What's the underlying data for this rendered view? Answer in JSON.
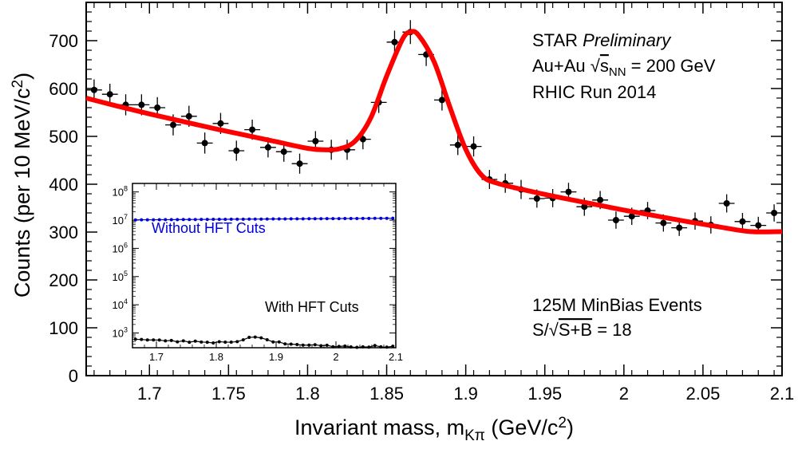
{
  "chart_data": [
    {
      "type": "scatter",
      "title": "",
      "xlabel": "Invariant mass, m",
      "xlabel_sub": "Kπ",
      "xlabel_unit": " (GeV/c",
      "xlabel_unit_sup": "2",
      "xlabel_unit_close": ")",
      "ylabel": "Counts (per 10 MeV/c",
      "ylabel_sup": "2",
      "ylabel_close": ")",
      "xlim": [
        1.66,
        2.1
      ],
      "ylim": [
        0,
        780
      ],
      "x_ticks": [
        1.7,
        1.75,
        1.8,
        1.85,
        1.9,
        1.95,
        2.0,
        2.05,
        2.1
      ],
      "x_tick_labels": [
        "1.7",
        "1.75",
        "1.8",
        "1.85",
        "1.9",
        "1.95",
        "2",
        "2.05",
        "2.1"
      ],
      "y_ticks": [
        0,
        100,
        200,
        300,
        400,
        500,
        600,
        700
      ],
      "y_tick_labels": [
        "0",
        "100",
        "200",
        "300",
        "400",
        "500",
        "600",
        "700"
      ],
      "grid": false,
      "x_error": 0.005,
      "series": [
        {
          "name": "",
          "color": "#000000",
          "x": [
            1.665,
            1.675,
            1.685,
            1.695,
            1.705,
            1.715,
            1.725,
            1.735,
            1.745,
            1.755,
            1.765,
            1.775,
            1.785,
            1.795,
            1.805,
            1.815,
            1.825,
            1.835,
            1.845,
            1.855,
            1.865,
            1.875,
            1.885,
            1.895,
            1.905,
            1.915,
            1.925,
            1.935,
            1.945,
            1.955,
            1.965,
            1.975,
            1.985,
            1.995,
            2.005,
            2.015,
            2.025,
            2.035,
            2.045,
            2.055,
            2.065,
            2.075,
            2.085,
            2.095
          ],
          "y": [
            597,
            588,
            566,
            566,
            560,
            524,
            542,
            486,
            527,
            470,
            514,
            477,
            468,
            443,
            490,
            472,
            472,
            494,
            571,
            697,
            718,
            671,
            576,
            482,
            479,
            410,
            402,
            389,
            370,
            371,
            384,
            353,
            367,
            325,
            333,
            345,
            319,
            309,
            323,
            315,
            360,
            322,
            314,
            340
          ],
          "y_error": [
            22,
            22,
            22,
            22,
            22,
            22,
            22,
            22,
            22,
            21,
            21,
            21,
            21,
            21,
            21,
            21,
            21,
            21,
            22,
            24,
            25,
            24,
            22,
            21,
            21,
            20,
            20,
            20,
            19,
            19,
            19,
            19,
            19,
            18,
            18,
            18,
            18,
            17,
            18,
            18,
            19,
            18,
            18,
            18
          ]
        },
        {
          "name": "",
          "type": "line",
          "color": "#ff0000",
          "x": [
            1.66,
            1.68,
            1.7,
            1.72,
            1.74,
            1.76,
            1.78,
            1.8,
            1.81,
            1.82,
            1.83,
            1.84,
            1.85,
            1.86,
            1.865,
            1.87,
            1.88,
            1.89,
            1.9,
            1.91,
            1.92,
            1.94,
            1.96,
            1.98,
            2.0,
            2.02,
            2.04,
            2.06,
            2.08,
            2.1
          ],
          "y": [
            580,
            563,
            547,
            532,
            517,
            503,
            489,
            475,
            472,
            474,
            490,
            539,
            626,
            703,
            718,
            712,
            656,
            561,
            473,
            419,
            402,
            386,
            372,
            359,
            346,
            334,
            322,
            311,
            301,
            301
          ]
        }
      ],
      "annotations": {
        "experiment": "STAR",
        "status": "Preliminary",
        "system_prefix": "Au+Au ",
        "sqrt": "√",
        "s": "s",
        "s_sub": "NN",
        "energy": " = 200 GeV",
        "run": "RHIC Run 2014",
        "events": "125M MinBias Events",
        "significance_prefix": "S/",
        "significance_sqrt": "√",
        "significance_sb": "S+B",
        "significance_value": " = 18"
      }
    },
    {
      "type": "scatter",
      "title": "",
      "y_scale": "log",
      "xlim": [
        1.66,
        2.1
      ],
      "ylim": [
        300,
        200000000
      ],
      "x_ticks": [
        1.7,
        1.8,
        1.9,
        2.0,
        2.1
      ],
      "x_tick_labels": [
        "1.7",
        "1.8",
        "1.9",
        "2",
        "2.1"
      ],
      "y_ticks": [
        1000,
        10000,
        100000,
        1000000,
        10000000,
        100000000
      ],
      "y_tick_base": "10",
      "y_tick_exponents": [
        "3",
        "4",
        "5",
        "6",
        "7",
        "8"
      ],
      "series": [
        {
          "name": "Without HFT Cuts",
          "color": "#0000dd",
          "x": [
            1.665,
            1.675,
            1.685,
            1.695,
            1.705,
            1.715,
            1.725,
            1.735,
            1.745,
            1.755,
            1.765,
            1.775,
            1.785,
            1.795,
            1.805,
            1.815,
            1.825,
            1.835,
            1.845,
            1.855,
            1.865,
            1.875,
            1.885,
            1.895,
            1.905,
            1.915,
            1.925,
            1.935,
            1.945,
            1.955,
            1.965,
            1.975,
            1.985,
            1.995,
            2.005,
            2.015,
            2.025,
            2.035,
            2.045,
            2.055,
            2.065,
            2.075,
            2.085,
            2.095
          ],
          "y": [
            10200000,
            10250000,
            10300000,
            10300000,
            10350000,
            10400000,
            10400000,
            10450000,
            10500000,
            10500000,
            10550000,
            10600000,
            10600000,
            10650000,
            10700000,
            10700000,
            10750000,
            10800000,
            10800000,
            10850000,
            10900000,
            10900000,
            10950000,
            11000000,
            11000000,
            11050000,
            11100000,
            11100000,
            11150000,
            11200000,
            11200000,
            11250000,
            11300000,
            11300000,
            11350000,
            11400000,
            11400000,
            11450000,
            11500000,
            11500000,
            11550000,
            11600000,
            11600000,
            11650000
          ]
        },
        {
          "name": "With HFT Cuts",
          "color": "#000000",
          "x": [
            1.665,
            1.675,
            1.685,
            1.695,
            1.705,
            1.715,
            1.725,
            1.735,
            1.745,
            1.755,
            1.765,
            1.775,
            1.785,
            1.795,
            1.805,
            1.815,
            1.825,
            1.835,
            1.845,
            1.855,
            1.865,
            1.875,
            1.885,
            1.895,
            1.905,
            1.915,
            1.925,
            1.935,
            1.945,
            1.955,
            1.965,
            1.975,
            1.985,
            1.995,
            2.005,
            2.015,
            2.025,
            2.035,
            2.045,
            2.055,
            2.065,
            2.075,
            2.085,
            2.095
          ],
          "y": [
            597,
            588,
            566,
            566,
            560,
            524,
            542,
            486,
            527,
            470,
            514,
            477,
            468,
            443,
            490,
            472,
            472,
            494,
            571,
            697,
            718,
            671,
            576,
            482,
            479,
            410,
            402,
            389,
            370,
            371,
            384,
            353,
            367,
            325,
            333,
            345,
            319,
            309,
            323,
            315,
            360,
            322,
            314,
            340
          ]
        }
      ]
    }
  ]
}
